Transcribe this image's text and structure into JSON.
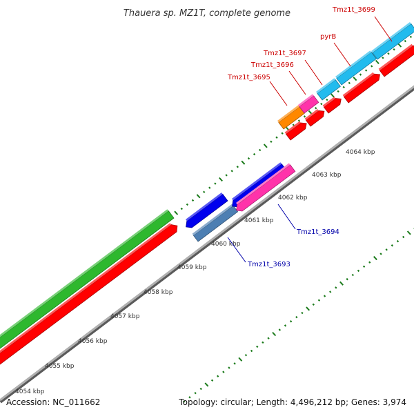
{
  "title": "Thauera sp. MZ1T, complete genome",
  "accession_text": "Accession: NC_011662",
  "topology_text": "Topology: circular; Length: 4,496,212 bp; Genes: 3,974",
  "scale_ticks": [
    "4054 kbp",
    "4055 kbp",
    "4056 kbp",
    "4057 kbp",
    "4058 kbp",
    "4059 kbp",
    "4060 kbp",
    "4061 kbp",
    "4062 kbp",
    "4063 kbp",
    "4064 kbp"
  ],
  "genes": [
    {
      "label": "Tmz1t_3699",
      "strand": "forward",
      "label_color": "#cc0000"
    },
    {
      "label": "pyrB",
      "strand": "forward",
      "label_color": "#cc0000"
    },
    {
      "label": "Tmz1t_3697",
      "strand": "forward",
      "label_color": "#cc0000"
    },
    {
      "label": "Tmz1t_3696",
      "strand": "forward",
      "label_color": "#cc0000"
    },
    {
      "label": "Tmz1t_3695",
      "strand": "forward",
      "label_color": "#cc0000"
    },
    {
      "label": "Tmz1t_3694",
      "strand": "reverse",
      "label_color": "#0000aa"
    },
    {
      "label": "Tmz1t_3693",
      "strand": "reverse",
      "label_color": "#0000aa"
    }
  ],
  "colors": {
    "cds_red": "#ff0000",
    "gene_green": "#2eb82e",
    "cds_blue": "#0000ee",
    "cds_magenta": "#ff33aa",
    "cds_cyan": "#22bbee",
    "cds_orange": "#ff8800",
    "cds_steelblue": "#4d7fb3",
    "backbone_gray": "#888888",
    "tick_green": "#1a7a1a",
    "forward_label": "#cc0000",
    "reverse_label": "#0000aa"
  }
}
